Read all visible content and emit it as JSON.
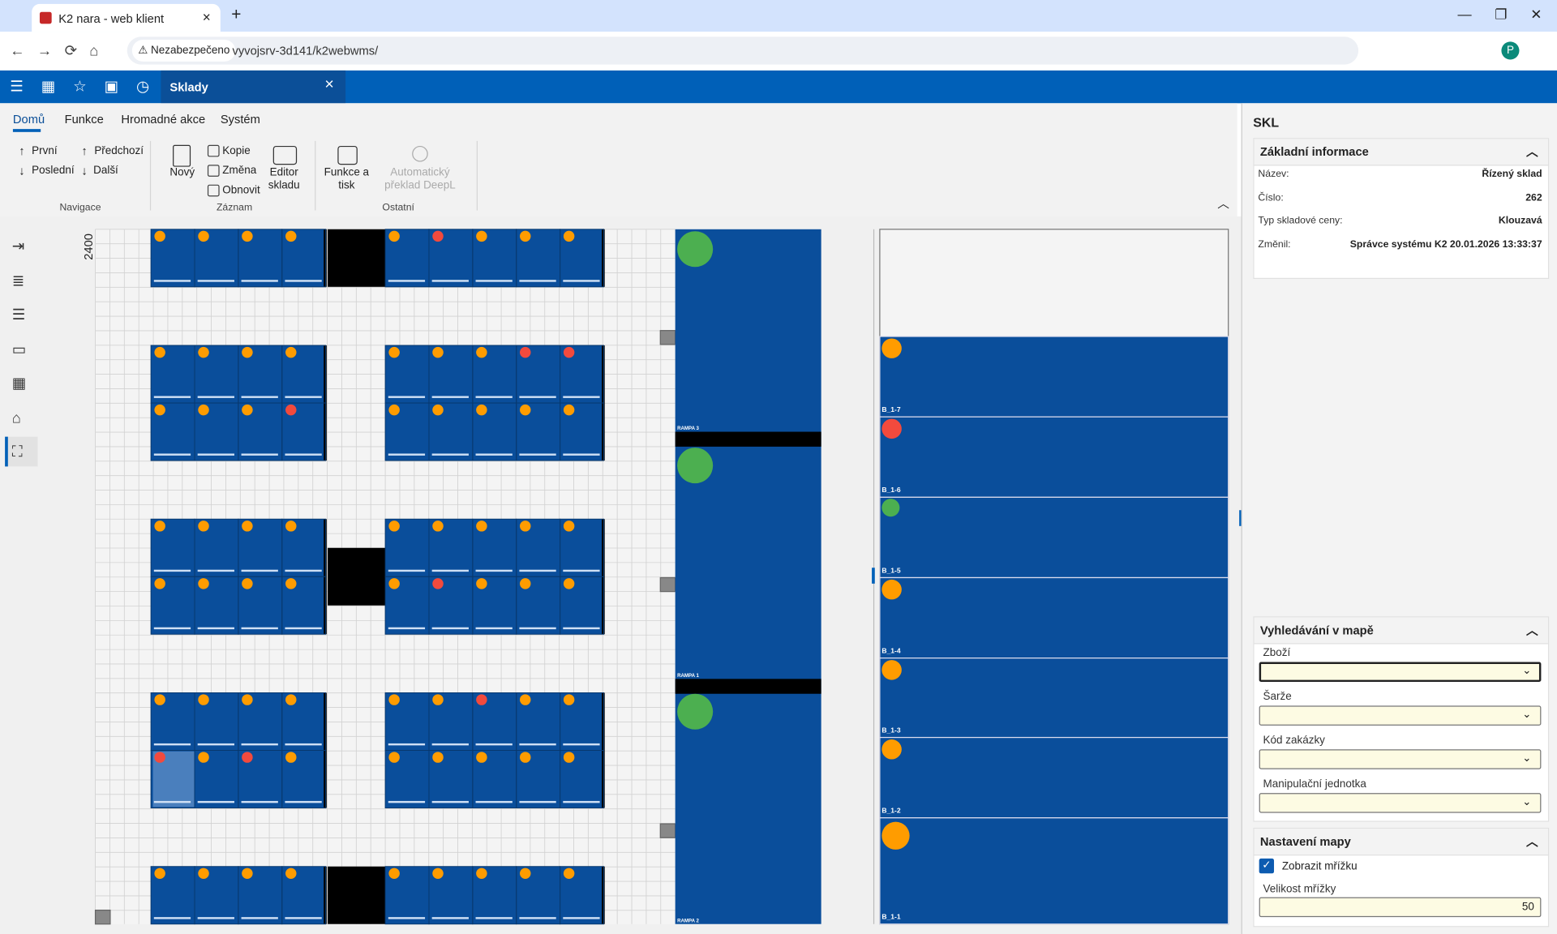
{
  "browser": {
    "tab_title": "K2 nara - web klient",
    "security": "Nezabezpečeno",
    "url": "vyvojsrv-3d141/k2webwms/",
    "profile": "P"
  },
  "app": {
    "tab": "Sklady"
  },
  "ribbon": {
    "tabs": [
      "Domů",
      "Funkce",
      "Hromadné akce",
      "Systém"
    ],
    "groups": [
      {
        "label": "Navigace",
        "buttons": [
          "První",
          "Poslední",
          "Předchozí",
          "Další"
        ]
      },
      {
        "label": "Záznam",
        "buttons": [
          "Nový",
          "Kopie",
          "Změna",
          "Obnovit",
          "Editor skladu"
        ]
      },
      {
        "label": "Ostatní",
        "buttons": [
          "Funkce a tisk",
          "Automatický překlad DeepL"
        ]
      }
    ]
  },
  "map": {
    "axis_label": "2400",
    "ramps": [
      "RAMPA 3",
      "RAMPA 1",
      "RAMPA 2"
    ],
    "locations": [
      "B_1-7",
      "B_1-6",
      "B_1-5",
      "B_1-4",
      "B_1-3",
      "B_1-2",
      "B_1-1"
    ]
  },
  "panel": {
    "title": "SKL",
    "basic": {
      "heading": "Základní informace",
      "rows": [
        [
          "Název:",
          "Řízený sklad"
        ],
        [
          "Číslo:",
          262
        ],
        [
          "Typ skladové ceny:",
          "Klouzavá"
        ],
        [
          "Změnil:",
          "Správce systému K2 20.01.2026 13:33:37"
        ]
      ]
    },
    "search": {
      "heading": "Vyhledávání v mapě",
      "fields": [
        "Zboží",
        "Šarže",
        "Kód zakázky",
        "Manipulační jednotka"
      ]
    },
    "settings": {
      "heading": "Nastavení mapy",
      "show_grid": "Zobrazit mřížku",
      "grid_size_label": "Velikost mřížky",
      "grid_size": 50
    }
  }
}
